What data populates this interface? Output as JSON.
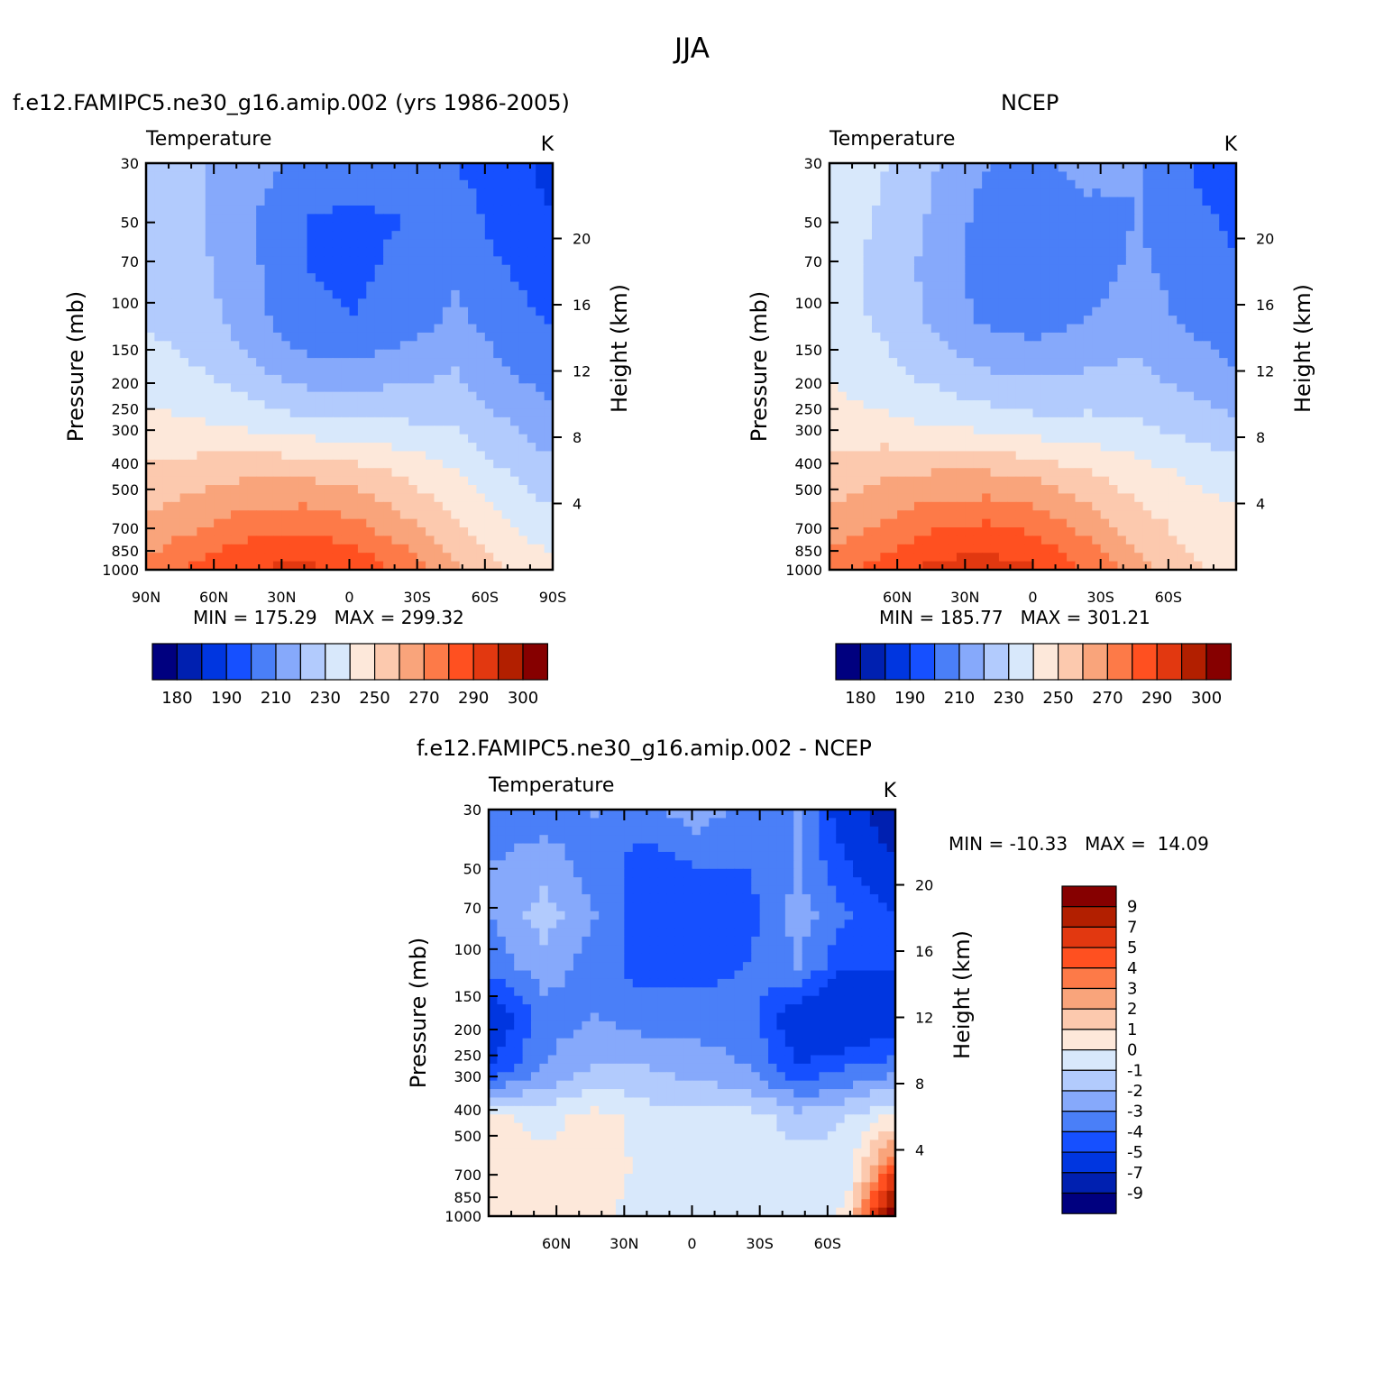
{
  "figure": {
    "title": "JJA"
  },
  "palette": {
    "temperature": [
      "#00007f",
      "#0020b0",
      "#0036e0",
      "#1650ff",
      "#4a7ff8",
      "#86a9fb",
      "#b2cbfd",
      "#d8e8fb",
      "#fde8da",
      "#fcc9ae",
      "#f9a47b",
      "#fd7a48",
      "#ff5020",
      "#e23810",
      "#b21f00",
      "#860000"
    ],
    "difference": [
      "#00007f",
      "#0020b0",
      "#0036e0",
      "#1650ff",
      "#4a7ff8",
      "#86a9fb",
      "#b2cbfd",
      "#d8e8fb",
      "#fde8da",
      "#fcc9ae",
      "#f9a47b",
      "#fd7a48",
      "#ff5020",
      "#e23810",
      "#b21f00",
      "#860000"
    ]
  },
  "chart_data": [
    {
      "type": "contour",
      "id": "model",
      "subtitle": "f.e12.FAMIPC5.ne30_g16.amip.002 (yrs 1986-2005)",
      "field": "Temperature",
      "units": "K",
      "ylabel": "Pressure (mb)",
      "ylabel_right": "Height (km)",
      "pressure_ticks": [
        "30",
        "50",
        "70",
        "100",
        "150",
        "200",
        "250",
        "300",
        "400",
        "500",
        "700",
        "850",
        "1000"
      ],
      "height_ticks": [
        "20",
        "16",
        "12",
        "8",
        "4"
      ],
      "lat_ticks": [
        "90N",
        "60N",
        "30N",
        "0",
        "30S",
        "60S",
        "90S"
      ],
      "min_label": "MIN =",
      "min": "175.29",
      "max_label": "MAX =",
      "max": "299.32",
      "colorbar_labels": [
        "180",
        "190",
        "210",
        "230",
        "250",
        "270",
        "290",
        "300"
      ],
      "levels_x": [
        90,
        60,
        30,
        0,
        -30,
        -60,
        -90
      ],
      "field_rows": [
        [
          225,
          220,
          215,
          205,
          205,
          205,
          200,
          195,
          185
        ],
        [
          225,
          220,
          210,
          200,
          198,
          200,
          205,
          195,
          190
        ],
        [
          228,
          222,
          212,
          200,
          198,
          202,
          208,
          200,
          192
        ],
        [
          228,
          224,
          214,
          202,
          200,
          204,
          212,
          205,
          198
        ],
        [
          235,
          230,
          222,
          214,
          213,
          216,
          220,
          210,
          205
        ],
        [
          242,
          240,
          236,
          232,
          230,
          230,
          228,
          220,
          212
        ],
        [
          252,
          255,
          258,
          258,
          255,
          248,
          240,
          230,
          222
        ],
        [
          262,
          268,
          275,
          276,
          272,
          262,
          250,
          240,
          232
        ],
        [
          275,
          285,
          292,
          294,
          290,
          278,
          262,
          250,
          245
        ]
      ]
    },
    {
      "type": "contour",
      "id": "obs",
      "subtitle": "NCEP",
      "field": "Temperature",
      "units": "K",
      "ylabel": "Pressure (mb)",
      "ylabel_right": "Height (km)",
      "pressure_ticks": [
        "30",
        "50",
        "70",
        "100",
        "150",
        "200",
        "250",
        "300",
        "400",
        "500",
        "700",
        "850",
        "1000"
      ],
      "height_ticks": [
        "20",
        "16",
        "12",
        "8",
        "4"
      ],
      "lat_ticks": [
        "60N",
        "30N",
        "0",
        "30S",
        "60S"
      ],
      "min_label": "MIN =",
      "min": "185.77",
      "max_label": "MAX =",
      "max": "301.21",
      "colorbar_labels": [
        "180",
        "190",
        "210",
        "230",
        "250",
        "270",
        "290",
        "300"
      ],
      "levels_x": [
        90,
        60,
        30,
        0,
        -30,
        -60,
        -90
      ],
      "field_rows": [
        [
          238,
          230,
          220,
          210,
          208,
          212,
          210,
          200,
          195
        ],
        [
          236,
          228,
          218,
          206,
          204,
          208,
          210,
          202,
          198
        ],
        [
          234,
          226,
          216,
          204,
          200,
          206,
          212,
          205,
          200
        ],
        [
          234,
          228,
          218,
          208,
          205,
          210,
          215,
          208,
          205
        ],
        [
          238,
          232,
          226,
          220,
          218,
          220,
          222,
          215,
          210
        ],
        [
          244,
          242,
          238,
          235,
          232,
          232,
          230,
          225,
          220
        ],
        [
          254,
          258,
          260,
          260,
          257,
          250,
          244,
          238,
          234
        ],
        [
          264,
          270,
          278,
          280,
          276,
          265,
          254,
          246,
          242
        ],
        [
          276,
          286,
          294,
          297,
          292,
          280,
          265,
          252,
          248
        ]
      ]
    },
    {
      "type": "contour",
      "id": "diff",
      "subtitle": "f.e12.FAMIPC5.ne30_g16.amip.002 - NCEP",
      "field": "Temperature",
      "units": "K",
      "ylabel": "Pressure (mb)",
      "ylabel_right": "Height (km)",
      "pressure_ticks": [
        "30",
        "50",
        "70",
        "100",
        "150",
        "200",
        "250",
        "300",
        "400",
        "500",
        "700",
        "850",
        "1000"
      ],
      "height_ticks": [
        "20",
        "16",
        "12",
        "8",
        "4"
      ],
      "lat_ticks": [
        "60N",
        "30N",
        "0",
        "30S",
        "60S"
      ],
      "min_label": "MIN =",
      "min": "-10.33",
      "max_label": "MAX =",
      "max": "14.09",
      "colorbar_labels": [
        "9",
        "7",
        "5",
        "4",
        "3",
        "2",
        "1",
        "0",
        "-1",
        "-2",
        "-3",
        "-4",
        "-5",
        "-7",
        "-9"
      ],
      "field_rows": [
        [
          -3.5,
          -3.5,
          -3.0,
          -3.5,
          -2.5,
          -3.5,
          -3.0,
          -6.0,
          -9.0
        ],
        [
          -3.0,
          -2.5,
          -3.5,
          -4.5,
          -4.0,
          -4.0,
          -3.0,
          -5.0,
          -7.0
        ],
        [
          -3.0,
          -1.5,
          -3.0,
          -5.0,
          -5.0,
          -4.5,
          -2.5,
          -4.0,
          -5.0
        ],
        [
          -3.5,
          -2.5,
          -3.5,
          -4.5,
          -4.5,
          -4.0,
          -3.0,
          -5.0,
          -5.0
        ],
        [
          -6.0,
          -3.5,
          -3.0,
          -3.5,
          -3.5,
          -3.5,
          -6.0,
          -7.0,
          -5.5
        ],
        [
          -5.0,
          -3.0,
          -2.0,
          -2.0,
          -2.5,
          -3.0,
          -5.0,
          -4.0,
          -3.5
        ],
        [
          0.4,
          -0.5,
          0.5,
          -0.5,
          -0.5,
          -0.5,
          -1.5,
          -1.0,
          0.5
        ],
        [
          0.5,
          0.5,
          0.8,
          -0.3,
          -0.3,
          -0.5,
          -0.5,
          -0.5,
          5.0
        ],
        [
          0.5,
          1.0,
          0.5,
          -1.0,
          -0.3,
          -0.5,
          -1.0,
          0.5,
          12.0
        ]
      ]
    }
  ]
}
